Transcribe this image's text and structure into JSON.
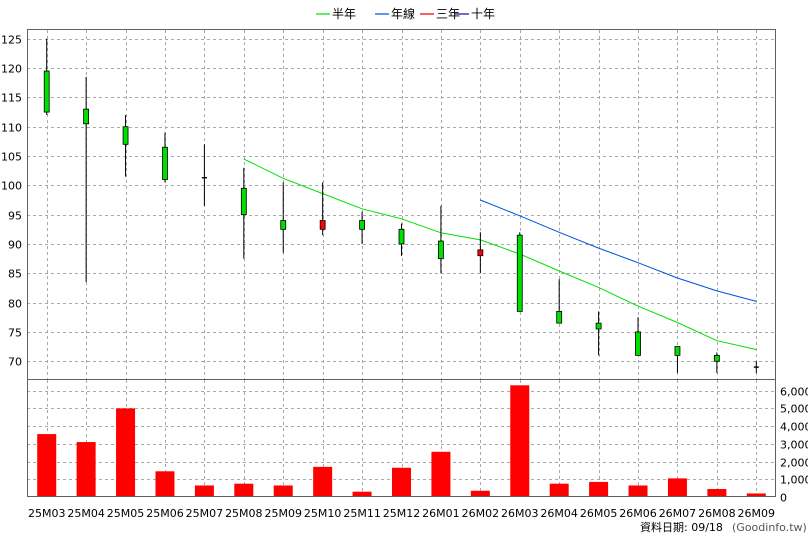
{
  "legend": [
    {
      "name": "半年",
      "color": "#00e000"
    },
    {
      "name": "年線",
      "color": "#0050e0"
    },
    {
      "name": "三年",
      "color": "#e00000"
    },
    {
      "name": "十年",
      "color": "#3000a0"
    }
  ],
  "footer": {
    "date_label": "資料日期: 09/18",
    "source": "(Goodinfo.tw)"
  },
  "chart_data": [
    {
      "type": "candlestick",
      "categories": [
        "25M03",
        "25M04",
        "25M05",
        "25M06",
        "25M07",
        "25M08",
        "25M09",
        "25M10",
        "25M11",
        "25M12",
        "26M01",
        "26M02",
        "26M03",
        "26M04",
        "26M05",
        "26M06",
        "26M07",
        "26M08",
        "26M09"
      ],
      "ylim": [
        66.8,
        126.5
      ],
      "yticks": [
        70,
        75,
        80,
        85,
        90,
        95,
        100,
        105,
        110,
        115,
        120,
        125
      ],
      "grid": true,
      "candles": [
        {
          "open": 119.5,
          "high": 125.0,
          "low": 112.0,
          "close": 112.5
        },
        {
          "open": 113.0,
          "high": 118.5,
          "low": 83.5,
          "close": 110.5
        },
        {
          "open": 110.0,
          "high": 112.0,
          "low": 101.5,
          "close": 107.0
        },
        {
          "open": 106.5,
          "high": 109.0,
          "low": 100.5,
          "close": 101.0
        },
        {
          "open": 101.3,
          "high": 107.0,
          "low": 96.5,
          "close": 101.3
        },
        {
          "open": 99.5,
          "high": 103.0,
          "low": 87.5,
          "close": 95.0
        },
        {
          "open": 94.0,
          "high": 100.5,
          "low": 88.5,
          "close": 92.5
        },
        {
          "open": 92.5,
          "high": 100.5,
          "low": 91.5,
          "close": 94.0
        },
        {
          "open": 94.0,
          "high": 95.5,
          "low": 90.0,
          "close": 92.5
        },
        {
          "open": 92.5,
          "high": 93.5,
          "low": 88.0,
          "close": 90.0
        },
        {
          "open": 90.5,
          "high": 96.5,
          "low": 85.0,
          "close": 87.5
        },
        {
          "open": 88.0,
          "high": 92.0,
          "low": 85.0,
          "close": 89.0
        },
        {
          "open": 91.5,
          "high": 92.0,
          "low": 78.5,
          "close": 78.5
        },
        {
          "open": 78.5,
          "high": 84.0,
          "low": 76.5,
          "close": 76.5
        },
        {
          "open": 76.5,
          "high": 78.5,
          "low": 71.0,
          "close": 75.5
        },
        {
          "open": 75.0,
          "high": 77.5,
          "low": 71.0,
          "close": 71.0
        },
        {
          "open": 72.5,
          "high": 72.5,
          "low": 68.0,
          "close": 71.0
        },
        {
          "open": 71.0,
          "high": 71.5,
          "low": 68.0,
          "close": 70.0
        },
        {
          "open": 69.0,
          "high": 70.0,
          "low": 68.0,
          "close": 69.0
        }
      ],
      "series": [
        {
          "name": "半年",
          "color": "#00e000",
          "values": [
            null,
            null,
            null,
            null,
            null,
            104.5,
            101.2,
            98.6,
            96.0,
            94.3,
            91.9,
            90.7,
            88.3,
            85.4,
            82.6,
            79.4,
            76.6,
            73.5,
            72.0
          ]
        },
        {
          "name": "年線",
          "color": "#0050e0",
          "values": [
            null,
            null,
            null,
            null,
            null,
            null,
            null,
            null,
            null,
            null,
            null,
            97.5,
            94.8,
            92.0,
            89.3,
            86.8,
            84.2,
            82.0,
            80.2
          ]
        }
      ]
    },
    {
      "type": "bar",
      "categories": [
        "25M03",
        "25M04",
        "25M05",
        "25M06",
        "25M07",
        "25M08",
        "25M09",
        "25M10",
        "25M11",
        "25M12",
        "26M01",
        "26M02",
        "26M03",
        "26M04",
        "26M05",
        "26M06",
        "26M07",
        "26M08",
        "26M09"
      ],
      "values": [
        3550,
        3100,
        5000,
        1450,
        650,
        750,
        650,
        1700,
        300,
        1650,
        2550,
        350,
        6300,
        750,
        850,
        650,
        1050,
        450,
        200
      ],
      "color": "#ff0000",
      "ylim": [
        0,
        6600
      ],
      "yticks": [
        0,
        1000,
        2000,
        3000,
        4000,
        5000,
        6000
      ],
      "ytick_labels": [
        "0",
        "1,000",
        "2,000",
        "3,000",
        "4,000",
        "5,000",
        "6,000"
      ],
      "grid": true
    }
  ]
}
